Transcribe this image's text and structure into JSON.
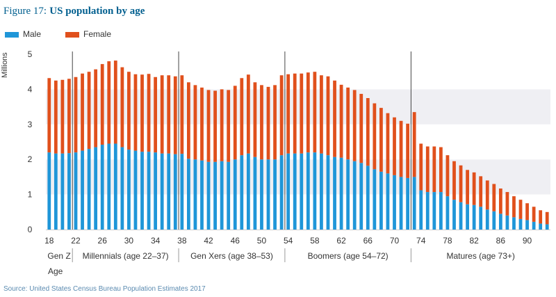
{
  "title": {
    "figure": "Figure 17:",
    "text": "US population by age"
  },
  "legend": [
    {
      "name": "Male",
      "color": "#1f96d8"
    },
    {
      "name": "Female",
      "color": "#e0501c"
    }
  ],
  "ylabel_text": "Millions",
  "source": "Source: United States Census Bureau Population Estimates 2017",
  "age_axis_label": "Age",
  "chart_data": {
    "type": "bar",
    "stacked": true,
    "title": "US population by age",
    "ylabel": "Millions",
    "xlabel": "Age",
    "ylim": [
      0,
      5
    ],
    "y_ticks": [
      "0",
      "1",
      "2",
      "3",
      "4",
      "5"
    ],
    "ages_start": 18,
    "ages_end": 93,
    "x_tick_labels": [
      "18",
      "22",
      "26",
      "30",
      "34",
      "38",
      "42",
      "46",
      "50",
      "54",
      "58",
      "62",
      "66",
      "70",
      "74",
      "78",
      "82",
      "86",
      "90"
    ],
    "series": [
      {
        "name": "Male",
        "color": "#1f96d8",
        "values": [
          2.2,
          2.17,
          2.17,
          2.18,
          2.2,
          2.25,
          2.3,
          2.35,
          2.42,
          2.45,
          2.45,
          2.35,
          2.28,
          2.25,
          2.22,
          2.22,
          2.2,
          2.17,
          2.17,
          2.15,
          2.16,
          2.02,
          2.0,
          1.97,
          1.93,
          1.93,
          1.95,
          1.93,
          2.0,
          2.12,
          2.17,
          2.07,
          2.0,
          2.0,
          2.0,
          2.12,
          2.17,
          2.17,
          2.17,
          2.2,
          2.2,
          2.17,
          2.12,
          2.07,
          2.05,
          2.0,
          1.95,
          1.9,
          1.82,
          1.72,
          1.65,
          1.6,
          1.55,
          1.5,
          1.47,
          1.5,
          1.12,
          1.07,
          1.07,
          1.07,
          0.95,
          0.85,
          0.78,
          0.72,
          0.7,
          0.65,
          0.57,
          0.52,
          0.45,
          0.4,
          0.35,
          0.3,
          0.27,
          0.22,
          0.17,
          0.15
        ],
        "_note": ""
      },
      {
        "name": "Female",
        "color": "#e0501c",
        "values": [
          2.12,
          2.08,
          2.1,
          2.12,
          2.15,
          2.2,
          2.2,
          2.22,
          2.3,
          2.35,
          2.37,
          2.28,
          2.22,
          2.18,
          2.2,
          2.22,
          2.15,
          2.23,
          2.23,
          2.22,
          2.24,
          2.18,
          2.12,
          2.08,
          2.05,
          2.03,
          2.05,
          2.05,
          2.1,
          2.2,
          2.25,
          2.13,
          2.12,
          2.07,
          2.12,
          2.28,
          2.26,
          2.28,
          2.28,
          2.28,
          2.3,
          2.23,
          2.25,
          2.18,
          2.08,
          2.05,
          2.03,
          1.97,
          1.93,
          1.88,
          1.82,
          1.72,
          1.65,
          1.6,
          1.55,
          1.85,
          1.33,
          1.3,
          1.3,
          1.28,
          1.17,
          1.1,
          1.05,
          0.98,
          0.93,
          0.87,
          0.83,
          0.78,
          0.72,
          0.67,
          0.6,
          0.55,
          0.48,
          0.43,
          0.38,
          0.35
        ],
        "_note": ""
      }
    ],
    "generations": [
      {
        "label": "Gen Z",
        "from_age": 18,
        "to_age": 21
      },
      {
        "label": "Millennials (age 22–37)",
        "from_age": 22,
        "to_age": 37
      },
      {
        "label": "Gen Xers (age 38–53)",
        "from_age": 38,
        "to_age": 53
      },
      {
        "label": "Boomers (age 54–72)",
        "from_age": 54,
        "to_age": 72
      },
      {
        "label": "Matures (age 73+)",
        "from_age": 73,
        "to_age": 93
      }
    ],
    "grid": true,
    "legend_position": "top-left"
  }
}
